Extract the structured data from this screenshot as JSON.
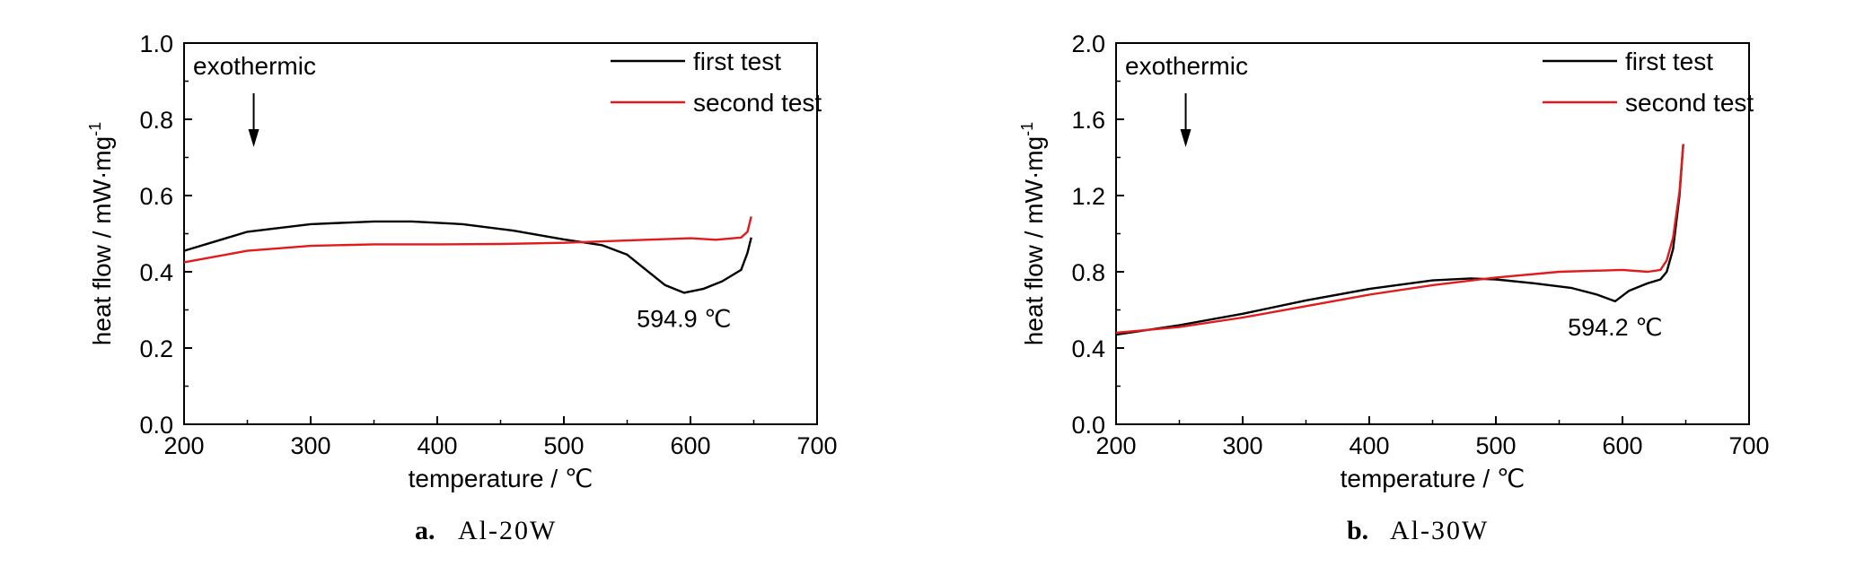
{
  "chart_data": [
    {
      "type": "line",
      "caption_letter": "a.",
      "caption_text": "Al-20W",
      "xlabel": "temperature / ℃",
      "ylabel": "heat flow / mW·mg",
      "ylabel_sup": "-1",
      "xlim": [
        200,
        700
      ],
      "ylim": [
        0.0,
        1.0
      ],
      "xticks": [
        "200",
        "300",
        "400",
        "500",
        "600",
        "700"
      ],
      "yticks": [
        "0.0",
        "0.2",
        "0.4",
        "0.6",
        "0.8",
        "1.0"
      ],
      "annotation_exo": "exothermic",
      "peak_label": "594.9 ℃",
      "peak": {
        "x": 594.9,
        "y": 0.345
      },
      "arrow_x": 255,
      "legend_position": "top-right",
      "grid": false,
      "series": [
        {
          "name": "first test",
          "color": "#000000",
          "x": [
            200,
            250,
            300,
            350,
            380,
            420,
            460,
            500,
            530,
            550,
            565,
            580,
            594.9,
            610,
            625,
            640,
            645,
            648
          ],
          "y": [
            0.455,
            0.505,
            0.525,
            0.532,
            0.532,
            0.525,
            0.508,
            0.485,
            0.47,
            0.445,
            0.405,
            0.365,
            0.345,
            0.355,
            0.375,
            0.405,
            0.45,
            0.49
          ]
        },
        {
          "name": "second test",
          "color": "#e31a1c",
          "x": [
            200,
            250,
            300,
            350,
            400,
            450,
            500,
            550,
            600,
            620,
            640,
            645,
            648
          ],
          "y": [
            0.425,
            0.455,
            0.468,
            0.472,
            0.472,
            0.473,
            0.476,
            0.482,
            0.488,
            0.484,
            0.49,
            0.505,
            0.545
          ]
        }
      ]
    },
    {
      "type": "line",
      "caption_letter": "b.",
      "caption_text": "Al-30W",
      "xlabel": "temperature / ℃",
      "ylabel": "heat flow / mW·mg",
      "ylabel_sup": "-1",
      "xlim": [
        200,
        700
      ],
      "ylim": [
        0.0,
        2.0
      ],
      "xticks": [
        "200",
        "300",
        "400",
        "500",
        "600",
        "700"
      ],
      "yticks": [
        "0.0",
        "0.4",
        "0.8",
        "1.2",
        "1.6",
        "2.0"
      ],
      "annotation_exo": "exothermic",
      "peak_label": "594.2 ℃",
      "peak": {
        "x": 594.2,
        "y": 0.645
      },
      "arrow_x": 255,
      "legend_position": "top-right",
      "grid": false,
      "series": [
        {
          "name": "first test",
          "color": "#000000",
          "x": [
            200,
            250,
            300,
            350,
            400,
            450,
            480,
            500,
            530,
            560,
            580,
            594.2,
            605,
            620,
            630,
            635,
            640,
            645,
            648
          ],
          "y": [
            0.47,
            0.52,
            0.58,
            0.65,
            0.71,
            0.755,
            0.765,
            0.76,
            0.74,
            0.715,
            0.68,
            0.645,
            0.7,
            0.74,
            0.76,
            0.8,
            0.92,
            1.2,
            1.47
          ]
        },
        {
          "name": "second test",
          "color": "#e31a1c",
          "x": [
            200,
            250,
            300,
            350,
            400,
            450,
            500,
            550,
            600,
            620,
            630,
            635,
            640,
            645,
            648
          ],
          "y": [
            0.48,
            0.51,
            0.56,
            0.62,
            0.68,
            0.73,
            0.77,
            0.8,
            0.81,
            0.8,
            0.81,
            0.86,
            0.98,
            1.22,
            1.47
          ]
        }
      ]
    }
  ]
}
